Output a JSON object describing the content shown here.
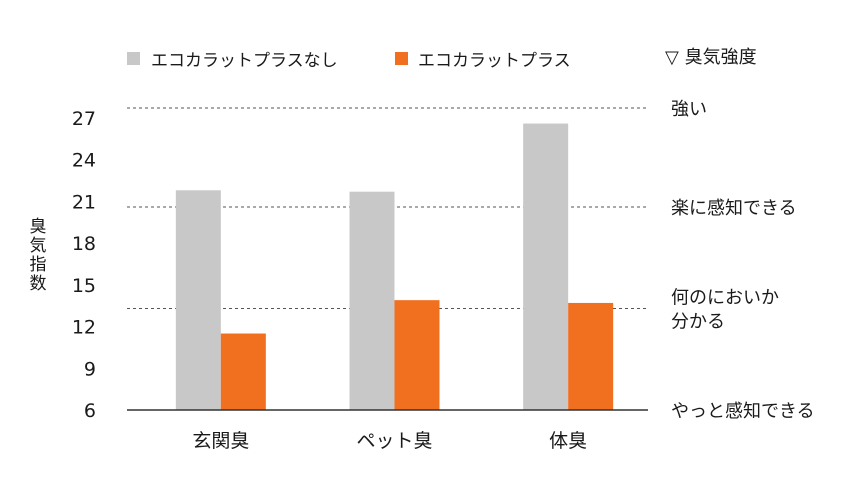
{
  "chart_data": {
    "type": "bar",
    "categories": [
      "玄関臭",
      "ペット臭",
      "体臭"
    ],
    "series": [
      {
        "name": "エコカラットプラスなし",
        "color": "#c8c8c8",
        "values": [
          21.8,
          21.7,
          26.6
        ]
      },
      {
        "name": "エコカラットプラス",
        "color": "#f07020",
        "values": [
          11.5,
          13.9,
          13.7
        ]
      }
    ],
    "ylabel": "臭気指数",
    "ylim": [
      6,
      27
    ],
    "yticks": [
      6,
      9,
      12,
      15,
      18,
      21,
      24,
      27
    ],
    "legend_position": "top",
    "intensity_scale": {
      "title": "▽ 臭気強度",
      "levels": [
        {
          "value": 28,
          "lines": [
            "強い"
          ],
          "dashed": true
        },
        {
          "value": 20.6,
          "lines": [
            "楽に感知できる"
          ],
          "dashed": true
        },
        {
          "value": 13.3,
          "lines": [
            "何のにおいか",
            "分かる"
          ],
          "dashed": true
        },
        {
          "value": 6,
          "lines": [
            "やっと感知できる"
          ],
          "dashed": false
        }
      ]
    }
  }
}
